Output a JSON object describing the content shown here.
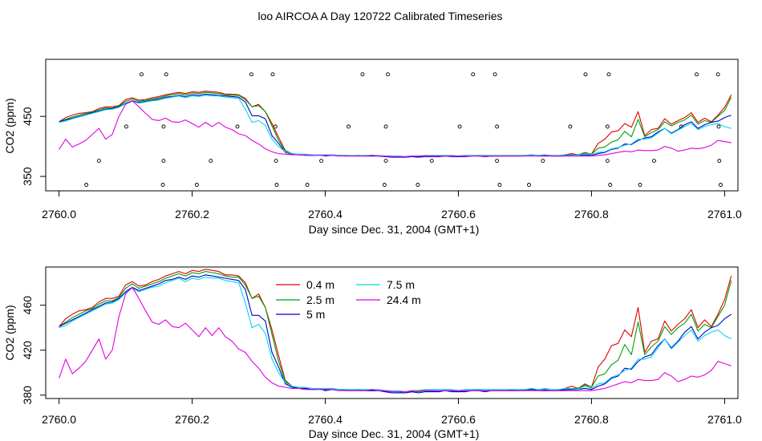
{
  "title": "loo AIRCOA A  Day 120722  Calibrated Timeseries",
  "colors": {
    "0.4 m": "#e00000",
    "2.5 m": "#00a000",
    "5 m": "#0000d0",
    "7.5 m": "#00d8e8",
    "24.4 m": "#e000e0"
  },
  "chart_data": [
    {
      "type": "line",
      "xlabel": "Day since Dec. 31, 2004 (GMT+1)",
      "ylabel": "CO2 (ppm)",
      "xlim": [
        2759.98,
        2761.02
      ],
      "ylim": [
        326,
        545
      ],
      "xticks": [
        "2760.0",
        "2760.2",
        "2760.4",
        "2760.6",
        "2760.8",
        "2761.0"
      ],
      "xtick_values": [
        2760.0,
        2760.2,
        2760.4,
        2760.6,
        2760.8,
        2761.0
      ],
      "yticks": [
        "350",
        "450"
      ],
      "ytick_values": [
        350,
        450
      ],
      "grid": false,
      "legend": "none",
      "series_source": "shared_series",
      "markers": [
        {
          "x": 2760.124,
          "y": 520
        },
        {
          "x": 2760.161,
          "y": 520
        },
        {
          "x": 2760.289,
          "y": 520
        },
        {
          "x": 2760.321,
          "y": 520
        },
        {
          "x": 2760.456,
          "y": 520
        },
        {
          "x": 2760.494,
          "y": 520
        },
        {
          "x": 2760.622,
          "y": 520
        },
        {
          "x": 2760.655,
          "y": 520
        },
        {
          "x": 2760.791,
          "y": 520
        },
        {
          "x": 2760.826,
          "y": 520
        },
        {
          "x": 2760.958,
          "y": 520
        },
        {
          "x": 2760.99,
          "y": 520
        },
        {
          "x": 2760.101,
          "y": 433
        },
        {
          "x": 2760.157,
          "y": 433
        },
        {
          "x": 2760.268,
          "y": 433
        },
        {
          "x": 2760.325,
          "y": 433
        },
        {
          "x": 2760.435,
          "y": 433
        },
        {
          "x": 2760.491,
          "y": 433
        },
        {
          "x": 2760.602,
          "y": 433
        },
        {
          "x": 2760.658,
          "y": 433
        },
        {
          "x": 2760.768,
          "y": 433
        },
        {
          "x": 2760.824,
          "y": 433
        },
        {
          "x": 2760.935,
          "y": 433
        },
        {
          "x": 2760.991,
          "y": 433
        },
        {
          "x": 2760.06,
          "y": 376
        },
        {
          "x": 2760.157,
          "y": 376
        },
        {
          "x": 2760.228,
          "y": 376
        },
        {
          "x": 2760.326,
          "y": 376
        },
        {
          "x": 2760.394,
          "y": 376
        },
        {
          "x": 2760.491,
          "y": 376
        },
        {
          "x": 2760.56,
          "y": 376
        },
        {
          "x": 2760.658,
          "y": 376
        },
        {
          "x": 2760.727,
          "y": 376
        },
        {
          "x": 2760.824,
          "y": 376
        },
        {
          "x": 2760.894,
          "y": 376
        },
        {
          "x": 2760.992,
          "y": 376
        },
        {
          "x": 2760.041,
          "y": 336
        },
        {
          "x": 2760.156,
          "y": 336
        },
        {
          "x": 2760.207,
          "y": 336
        },
        {
          "x": 2760.327,
          "y": 336
        },
        {
          "x": 2760.373,
          "y": 336
        },
        {
          "x": 2760.489,
          "y": 336
        },
        {
          "x": 2760.539,
          "y": 336
        },
        {
          "x": 2760.662,
          "y": 336
        },
        {
          "x": 2760.706,
          "y": 336
        },
        {
          "x": 2760.828,
          "y": 336
        },
        {
          "x": 2760.873,
          "y": 336
        },
        {
          "x": 2760.994,
          "y": 336
        }
      ]
    },
    {
      "type": "line",
      "xlabel": "Day since Dec. 31, 2004 (GMT+1)",
      "ylabel": "CO2 (ppm)",
      "xlim": [
        2759.98,
        2761.02
      ],
      "ylim": [
        377,
        494
      ],
      "xticks": [
        "2760.0",
        "2760.2",
        "2760.4",
        "2760.6",
        "2760.8",
        "2761.0"
      ],
      "xtick_values": [
        2760.0,
        2760.2,
        2760.4,
        2760.6,
        2760.8,
        2761.0
      ],
      "yticks": [
        "380",
        "420",
        "460"
      ],
      "ytick_values": [
        380,
        420,
        460
      ],
      "grid": false,
      "legend": "top-center",
      "legend_entries": [
        "0.4 m",
        "2.5 m",
        "5 m",
        "7.5 m",
        "24.4 m"
      ],
      "series_source": "shared_series"
    }
  ],
  "shared_series": {
    "x_start": 2760.0,
    "x_step": 0.01,
    "series": [
      {
        "name": "0.4 m",
        "color": "#e00000",
        "values": [
          441,
          448,
          452,
          455,
          456,
          458,
          463,
          466,
          466,
          468,
          478,
          481,
          477,
          478,
          481,
          483,
          486,
          488,
          490,
          488,
          491,
          490,
          492,
          491,
          490,
          487,
          487,
          486,
          480,
          466,
          470,
          458,
          438,
          415,
          393,
          388,
          386,
          386,
          385,
          386,
          385,
          386,
          385,
          385,
          384,
          385,
          384,
          385,
          384,
          384,
          383,
          383,
          382,
          383,
          383,
          384,
          384,
          383,
          384,
          384,
          383,
          384,
          384,
          385,
          384,
          384,
          384,
          384,
          385,
          384,
          385,
          386,
          384,
          385,
          384,
          384,
          386,
          388,
          386,
          390,
          387,
          405,
          412,
          424,
          426,
          438,
          432,
          458,
          418,
          428,
          430,
          446,
          437,
          443,
          448,
          456,
          440,
          447,
          441,
          452,
          465,
          486
        ]
      },
      {
        "name": "2.5 m",
        "color": "#00a000",
        "values": [
          441,
          445,
          449,
          452,
          455,
          457,
          461,
          464,
          464,
          467,
          475,
          479,
          475,
          477,
          479,
          481,
          484,
          486,
          488,
          486,
          489,
          488,
          490,
          489,
          488,
          486,
          485,
          485,
          478,
          466,
          468,
          458,
          434,
          410,
          392,
          388,
          386,
          386,
          385,
          386,
          385,
          386,
          385,
          385,
          384,
          385,
          384,
          384,
          384,
          383,
          383,
          383,
          382,
          383,
          383,
          384,
          384,
          383,
          384,
          384,
          383,
          384,
          384,
          385,
          384,
          384,
          384,
          384,
          384,
          384,
          385,
          385,
          384,
          385,
          384,
          384,
          384,
          386,
          386,
          389,
          387,
          397,
          399,
          407,
          411,
          425,
          416,
          445,
          416,
          423,
          428,
          441,
          434,
          440,
          444,
          452,
          437,
          443,
          440,
          450,
          460,
          482
        ]
      },
      {
        "name": "5 m",
        "color": "#0000d0",
        "values": [
          441,
          444,
          447,
          450,
          453,
          456,
          459,
          462,
          463,
          466,
          472,
          476,
          473,
          475,
          477,
          479,
          482,
          483,
          485,
          483,
          486,
          485,
          487,
          486,
          485,
          484,
          483,
          482,
          474,
          451,
          451,
          446,
          418,
          405,
          390,
          387,
          386,
          386,
          385,
          386,
          384,
          385,
          385,
          384,
          384,
          384,
          384,
          384,
          384,
          383,
          382,
          382,
          382,
          383,
          382,
          383,
          383,
          383,
          384,
          383,
          383,
          383,
          384,
          384,
          383,
          384,
          384,
          384,
          384,
          384,
          384,
          385,
          384,
          384,
          384,
          384,
          385,
          385,
          385,
          386,
          385,
          388,
          390,
          395,
          397,
          404,
          403,
          410,
          414,
          416,
          424,
          430,
          422,
          428,
          436,
          441,
          430,
          436,
          440,
          442,
          448,
          452
        ]
      },
      {
        "name": "7.5 m",
        "color": "#00d8e8",
        "values": [
          440,
          442,
          446,
          449,
          452,
          455,
          458,
          461,
          462,
          465,
          471,
          475,
          472,
          474,
          476,
          477,
          480,
          482,
          484,
          481,
          484,
          483,
          485,
          484,
          484,
          482,
          481,
          480,
          462,
          440,
          443,
          435,
          412,
          400,
          391,
          388,
          387,
          387,
          386,
          386,
          386,
          386,
          385,
          385,
          385,
          385,
          385,
          385,
          385,
          384,
          384,
          384,
          383,
          384,
          384,
          385,
          385,
          385,
          385,
          385,
          384,
          385,
          385,
          385,
          385,
          385,
          385,
          385,
          385,
          385,
          385,
          386,
          385,
          386,
          385,
          385,
          386,
          386,
          385,
          388,
          386,
          390,
          391,
          396,
          398,
          402,
          404,
          412,
          412,
          414,
          422,
          430,
          421,
          427,
          433,
          438,
          428,
          433,
          436,
          438,
          433,
          430
        ]
      },
      {
        "name": "24.4 m",
        "color": "#e000e0",
        "values": [
          395,
          412,
          399,
          404,
          410,
          420,
          430,
          412,
          420,
          450,
          470,
          476,
          466,
          455,
          445,
          443,
          447,
          441,
          440,
          444,
          438,
          432,
          440,
          433,
          440,
          432,
          428,
          421,
          418,
          410,
          404,
          396,
          391,
          388,
          387,
          386,
          386,
          385,
          385,
          385,
          385,
          385,
          384,
          384,
          384,
          384,
          384,
          385,
          384,
          384,
          383,
          383,
          383,
          384,
          384,
          384,
          384,
          384,
          384,
          384,
          384,
          384,
          384,
          384,
          384,
          384,
          384,
          384,
          384,
          384,
          384,
          384,
          384,
          385,
          384,
          384,
          384,
          384,
          384,
          384,
          384,
          385,
          386,
          388,
          390,
          392,
          391,
          394,
          393,
          393,
          394,
          400,
          397,
          392,
          394,
          397,
          396,
          398,
          402,
          410,
          408,
          406
        ]
      }
    ]
  }
}
